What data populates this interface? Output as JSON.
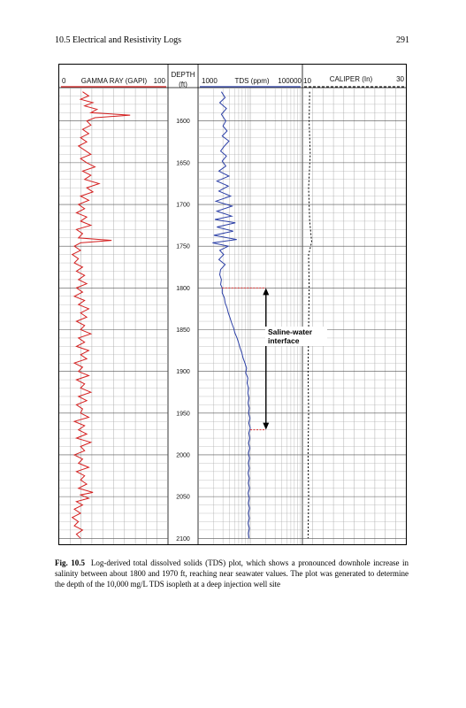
{
  "running_head": {
    "section": "10.5   Electrical and Resistivity Logs",
    "page_number": "291"
  },
  "figure": {
    "tracks": {
      "gamma": {
        "title": "GAMMA RAY (GAPI)",
        "min": "0",
        "max": "100",
        "color": "#d42020"
      },
      "depth": {
        "title_line1": "DEPTH",
        "title_line2": "(ft)"
      },
      "tds": {
        "title": "TDS (ppm)",
        "min": "1000",
        "max": "100000",
        "color": "#2b3fa6"
      },
      "caliper": {
        "title": "CALIPER (In)",
        "min": "10",
        "max": "30"
      }
    },
    "annotation": {
      "line1": "Saline-water",
      "line2": "interface"
    },
    "interface_top_ft": 1800,
    "interface_bottom_ft": 1970
  },
  "chart_data": {
    "type": "line",
    "x_axis": "depth_ft",
    "depth_range": [
      1560,
      2105
    ],
    "depth_ticks": [
      1600,
      1650,
      1700,
      1750,
      1800,
      1850,
      1900,
      1950,
      2000,
      2050,
      2100
    ],
    "series": [
      {
        "name": "GAMMA RAY (GAPI)",
        "xlim": [
          0,
          100
        ],
        "points": [
          [
            1565,
            20
          ],
          [
            1570,
            26
          ],
          [
            1574,
            18
          ],
          [
            1578,
            30
          ],
          [
            1582,
            22
          ],
          [
            1586,
            34
          ],
          [
            1590,
            28
          ],
          [
            1593,
            66
          ],
          [
            1596,
            32
          ],
          [
            1600,
            24
          ],
          [
            1605,
            28
          ],
          [
            1610,
            20
          ],
          [
            1615,
            26
          ],
          [
            1620,
            18
          ],
          [
            1625,
            24
          ],
          [
            1630,
            16
          ],
          [
            1635,
            22
          ],
          [
            1640,
            28
          ],
          [
            1645,
            18
          ],
          [
            1650,
            24
          ],
          [
            1655,
            32
          ],
          [
            1660,
            20
          ],
          [
            1665,
            28
          ],
          [
            1670,
            22
          ],
          [
            1675,
            36
          ],
          [
            1680,
            24
          ],
          [
            1685,
            30
          ],
          [
            1690,
            18
          ],
          [
            1695,
            26
          ],
          [
            1700,
            16
          ],
          [
            1705,
            22
          ],
          [
            1710,
            14
          ],
          [
            1715,
            24
          ],
          [
            1720,
            18
          ],
          [
            1725,
            28
          ],
          [
            1730,
            14
          ],
          [
            1735,
            20
          ],
          [
            1740,
            16
          ],
          [
            1743,
            48
          ],
          [
            1746,
            18
          ],
          [
            1750,
            12
          ],
          [
            1755,
            18
          ],
          [
            1760,
            10
          ],
          [
            1765,
            16
          ],
          [
            1770,
            12
          ],
          [
            1775,
            20
          ],
          [
            1780,
            14
          ],
          [
            1785,
            22
          ],
          [
            1790,
            16
          ],
          [
            1795,
            24
          ],
          [
            1800,
            14
          ],
          [
            1805,
            20
          ],
          [
            1810,
            12
          ],
          [
            1815,
            22
          ],
          [
            1820,
            16
          ],
          [
            1825,
            26
          ],
          [
            1830,
            18
          ],
          [
            1835,
            24
          ],
          [
            1840,
            14
          ],
          [
            1845,
            22
          ],
          [
            1850,
            18
          ],
          [
            1855,
            28
          ],
          [
            1860,
            16
          ],
          [
            1865,
            22
          ],
          [
            1870,
            14
          ],
          [
            1875,
            26
          ],
          [
            1880,
            18
          ],
          [
            1885,
            24
          ],
          [
            1890,
            12
          ],
          [
            1895,
            20
          ],
          [
            1900,
            16
          ],
          [
            1905,
            26
          ],
          [
            1910,
            14
          ],
          [
            1915,
            22
          ],
          [
            1920,
            18
          ],
          [
            1925,
            28
          ],
          [
            1930,
            16
          ],
          [
            1935,
            24
          ],
          [
            1940,
            14
          ],
          [
            1945,
            20
          ],
          [
            1950,
            18
          ],
          [
            1955,
            26
          ],
          [
            1960,
            12
          ],
          [
            1965,
            22
          ],
          [
            1970,
            16
          ],
          [
            1975,
            24
          ],
          [
            1980,
            14
          ],
          [
            1985,
            28
          ],
          [
            1990,
            18
          ],
          [
            1995,
            22
          ],
          [
            2000,
            12
          ],
          [
            2005,
            20
          ],
          [
            2010,
            16
          ],
          [
            2015,
            26
          ],
          [
            2020,
            14
          ],
          [
            2025,
            22
          ],
          [
            2030,
            18
          ],
          [
            2035,
            24
          ],
          [
            2040,
            16
          ],
          [
            2045,
            30
          ],
          [
            2048,
            18
          ],
          [
            2052,
            26
          ],
          [
            2056,
            14
          ],
          [
            2060,
            20
          ],
          [
            2065,
            12
          ],
          [
            2070,
            18
          ],
          [
            2075,
            10
          ],
          [
            2080,
            16
          ],
          [
            2085,
            12
          ],
          [
            2090,
            20
          ],
          [
            2095,
            14
          ],
          [
            2100,
            18
          ]
        ]
      },
      {
        "name": "TDS (ppm)",
        "xlim": [
          1000,
          100000
        ],
        "scale": "log",
        "points": [
          [
            1565,
            2800
          ],
          [
            1572,
            3300
          ],
          [
            1578,
            2600
          ],
          [
            1585,
            3500
          ],
          [
            1592,
            2800
          ],
          [
            1600,
            3400
          ],
          [
            1606,
            3000
          ],
          [
            1612,
            3600
          ],
          [
            1618,
            2900
          ],
          [
            1624,
            3900
          ],
          [
            1630,
            3200
          ],
          [
            1636,
            2700
          ],
          [
            1642,
            3500
          ],
          [
            1648,
            2900
          ],
          [
            1654,
            3400
          ],
          [
            1660,
            2500
          ],
          [
            1666,
            3900
          ],
          [
            1672,
            2300
          ],
          [
            1678,
            3800
          ],
          [
            1684,
            2500
          ],
          [
            1690,
            4200
          ],
          [
            1696,
            2200
          ],
          [
            1702,
            4500
          ],
          [
            1708,
            2300
          ],
          [
            1714,
            4400
          ],
          [
            1718,
            2100
          ],
          [
            1722,
            5200
          ],
          [
            1727,
            2300
          ],
          [
            1732,
            4700
          ],
          [
            1737,
            2000
          ],
          [
            1742,
            5500
          ],
          [
            1746,
            1900
          ],
          [
            1750,
            3800
          ],
          [
            1755,
            2600
          ],
          [
            1760,
            3100
          ],
          [
            1766,
            2500
          ],
          [
            1772,
            3300
          ],
          [
            1778,
            2700
          ],
          [
            1784,
            2600
          ],
          [
            1790,
            2800
          ],
          [
            1796,
            2700
          ],
          [
            1800,
            2900
          ],
          [
            1806,
            2900
          ],
          [
            1812,
            3200
          ],
          [
            1818,
            3300
          ],
          [
            1824,
            3600
          ],
          [
            1830,
            3800
          ],
          [
            1836,
            4100
          ],
          [
            1842,
            4400
          ],
          [
            1848,
            4800
          ],
          [
            1854,
            5100
          ],
          [
            1860,
            5600
          ],
          [
            1866,
            6000
          ],
          [
            1872,
            6400
          ],
          [
            1878,
            6900
          ],
          [
            1884,
            7300
          ],
          [
            1890,
            7900
          ],
          [
            1896,
            8500
          ],
          [
            1902,
            8200
          ],
          [
            1908,
            9000
          ],
          [
            1914,
            8700
          ],
          [
            1920,
            9300
          ],
          [
            1926,
            9000
          ],
          [
            1932,
            9500
          ],
          [
            1938,
            9100
          ],
          [
            1944,
            9600
          ],
          [
            1950,
            9300
          ],
          [
            1956,
            9900
          ],
          [
            1962,
            9400
          ],
          [
            1968,
            10000
          ],
          [
            1974,
            9400
          ],
          [
            1980,
            9800
          ],
          [
            1986,
            9300
          ],
          [
            1992,
            9800
          ],
          [
            1998,
            9200
          ],
          [
            2004,
            9700
          ],
          [
            2010,
            9200
          ],
          [
            2016,
            9600
          ],
          [
            2022,
            9100
          ],
          [
            2028,
            9600
          ],
          [
            2034,
            9200
          ],
          [
            2040,
            9700
          ],
          [
            2046,
            9100
          ],
          [
            2052,
            9600
          ],
          [
            2058,
            9200
          ],
          [
            2064,
            9700
          ],
          [
            2070,
            9200
          ],
          [
            2076,
            9600
          ],
          [
            2082,
            9100
          ],
          [
            2088,
            9600
          ],
          [
            2094,
            9200
          ],
          [
            2100,
            9500
          ]
        ]
      },
      {
        "name": "CALIPER (In)",
        "xlim": [
          10,
          30
        ],
        "points": [
          [
            1565,
            11.4
          ],
          [
            1600,
            11.3
          ],
          [
            1640,
            11.5
          ],
          [
            1680,
            11.2
          ],
          [
            1720,
            11.4
          ],
          [
            1745,
            11.8
          ],
          [
            1760,
            11.2
          ],
          [
            1800,
            11.3
          ],
          [
            1850,
            11.2
          ],
          [
            1900,
            11.1
          ],
          [
            1950,
            11.2
          ],
          [
            2000,
            11.1
          ],
          [
            2050,
            11.2
          ],
          [
            2100,
            11.1
          ]
        ]
      }
    ]
  },
  "caption": {
    "label": "Fig. 10.5",
    "text": "Log-derived total dissolved solids (TDS) plot, which shows a pronounced downhole increase in salinity between about 1800 and 1970 ft, reaching near seawater values. The plot was generated to determine the depth of the 10,000 mg/L TDS isopleth at a deep injection well site"
  }
}
